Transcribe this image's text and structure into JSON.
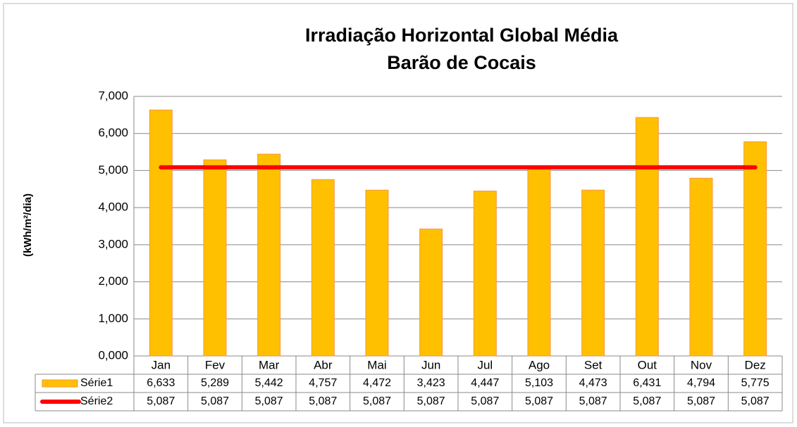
{
  "chart_data": {
    "type": "bar",
    "title": "Irradiação Horizontal Global Média",
    "subtitle": "Barão de Cocais",
    "y_label": "(kWh/m²/dia)",
    "categories": [
      "Jan",
      "Fev",
      "Mar",
      "Abr",
      "Mai",
      "Jun",
      "Jul",
      "Ago",
      "Set",
      "Out",
      "Nov",
      "Dez"
    ],
    "series": [
      {
        "name": "Série1",
        "type": "bar",
        "color": "#FFC000",
        "values": [
          6.633,
          5.289,
          5.442,
          4.757,
          4.472,
          3.423,
          4.447,
          5.103,
          4.473,
          6.431,
          4.794,
          5.775
        ],
        "value_labels": [
          "6,633",
          "5,289",
          "5,442",
          "4,757",
          "4,472",
          "3,423",
          "4,447",
          "5,103",
          "4,473",
          "6,431",
          "4,794",
          "5,775"
        ]
      },
      {
        "name": "Série2",
        "type": "line",
        "color": "#FF0000",
        "values": [
          5.087,
          5.087,
          5.087,
          5.087,
          5.087,
          5.087,
          5.087,
          5.087,
          5.087,
          5.087,
          5.087,
          5.087
        ],
        "value_labels": [
          "5,087",
          "5,087",
          "5,087",
          "5,087",
          "5,087",
          "5,087",
          "5,087",
          "5,087",
          "5,087",
          "5,087",
          "5,087",
          "5,087"
        ]
      }
    ],
    "ylim": [
      0,
      7
    ],
    "yticks": [
      {
        "value": 0,
        "label": "0,000"
      },
      {
        "value": 1,
        "label": "1,000"
      },
      {
        "value": 2,
        "label": "2,000"
      },
      {
        "value": 3,
        "label": "3,000"
      },
      {
        "value": 4,
        "label": "4,000"
      },
      {
        "value": 5,
        "label": "5,000"
      },
      {
        "value": 6,
        "label": "6,000"
      },
      {
        "value": 7,
        "label": "7,000"
      }
    ],
    "grid": true
  }
}
